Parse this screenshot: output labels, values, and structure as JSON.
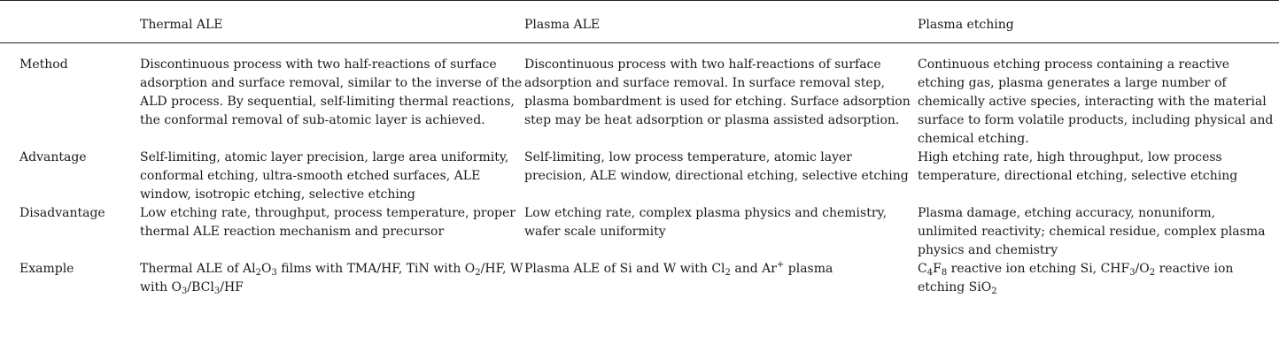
{
  "header": {
    "col0": "",
    "col1": "Thermal ALE",
    "col2": "Plasma ALE",
    "col3": "Plasma etching"
  },
  "rows": [
    {
      "label": "Method",
      "thermal": "Discontinuous process with two half-reactions of surface adsorption and surface removal, similar to the inverse of the ALD process. By sequential, self-limiting thermal reactions, the conformal removal of sub-atomic layer is achieved.",
      "plasma_ale": "Discontinuous process with two half-reactions of surface adsorption and surface removal. In surface removal step, plasma bombardment is used for etching. Surface adsorption step may be heat adsorption or plasma assisted adsorption.",
      "plasma_etching": "Continuous etching process containing a reactive etching gas, plasma generates a large number of chemically active species, interacting with the material surface to form volatile products, including physical and chemical etching."
    },
    {
      "label": "Advantage",
      "thermal": "Self-limiting, atomic layer precision, large area uniformity, conformal etching, ultra-smooth etched surfaces, ALE window, isotropic etching, selective etching",
      "plasma_ale": "Self-limiting, low process temperature, atomic layer precision, ALE window, directional etching, selective etching",
      "plasma_etching": "High etching rate, high throughput, low process temperature, directional etching, selective etching"
    },
    {
      "label": "Disadvantage",
      "thermal": "Low etching rate, throughput, process temperature, proper thermal ALE reaction mechanism and precursor",
      "plasma_ale": "Low etching rate, complex plasma physics and chemistry, wafer scale uniformity",
      "plasma_etching": "Plasma damage, etching accuracy, nonuniform, unlimited reactivity; chemical residue, complex plasma physics and chemistry"
    },
    {
      "label": "Example",
      "thermal_parts": [
        "Thermal ALE of Al",
        "2",
        "O",
        "3",
        " films with TMA/HF, TiN with O",
        "2",
        "/HF, W with O",
        "3",
        "/BCl",
        "3",
        "/HF"
      ],
      "plasma_ale_parts": [
        "Plasma ALE of Si and W with Cl",
        "2",
        " and Ar",
        "+",
        " plasma"
      ],
      "plasma_etching_parts": [
        "C",
        "4",
        "F",
        "8",
        " reactive ion etching Si, CHF",
        "3",
        "/O",
        "2",
        " reactive ion etching SiO",
        "2"
      ]
    }
  ]
}
